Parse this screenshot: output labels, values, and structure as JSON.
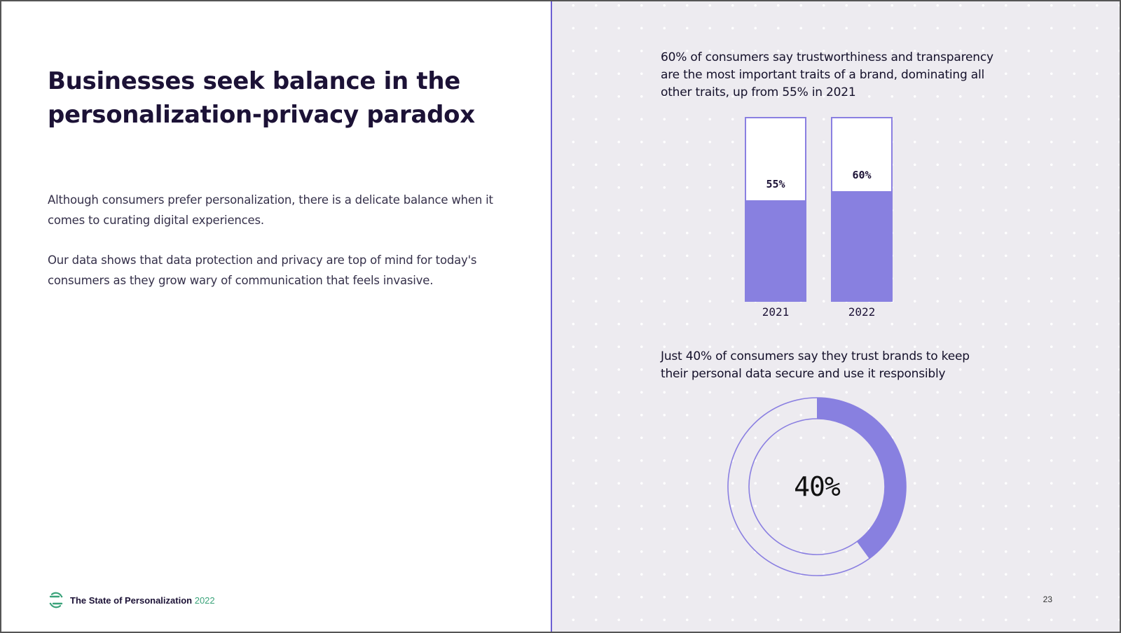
{
  "headline": "Businesses seek balance in the personalization-privacy paradox",
  "body": {
    "p1": "Although consumers prefer personalization, there is a delicate balance when it comes to curating digital experiences.",
    "p2": "Our data shows that data protection and privacy are top of mind for today's consumers as they grow wary of communication that feels invasive."
  },
  "footer": {
    "brand": "The State of Personalization",
    "year": "2022",
    "page": "23"
  },
  "colors": {
    "accent": "#8880e0",
    "outline": "#8a7fe1",
    "brand_green": "#3aa37a",
    "title": "#1c1236"
  },
  "icons": {
    "logo": "segment-logo-icon"
  },
  "chart_data": [
    {
      "type": "bar",
      "title": "60% of consumers say trustworthiness and transparency are the most important traits of a brand, dominating all other traits, up from 55% in 2021",
      "categories": [
        "2021",
        "2022"
      ],
      "values": [
        55,
        60
      ],
      "labels": [
        "55%",
        "60%"
      ],
      "ylim": [
        0,
        100
      ],
      "xlabel": "",
      "ylabel": ""
    },
    {
      "type": "pie",
      "title": "Just 40% of consumers say they trust brands to keep their personal data secure and use it responsibly",
      "values": [
        40,
        60
      ],
      "center_label": "40%"
    }
  ]
}
